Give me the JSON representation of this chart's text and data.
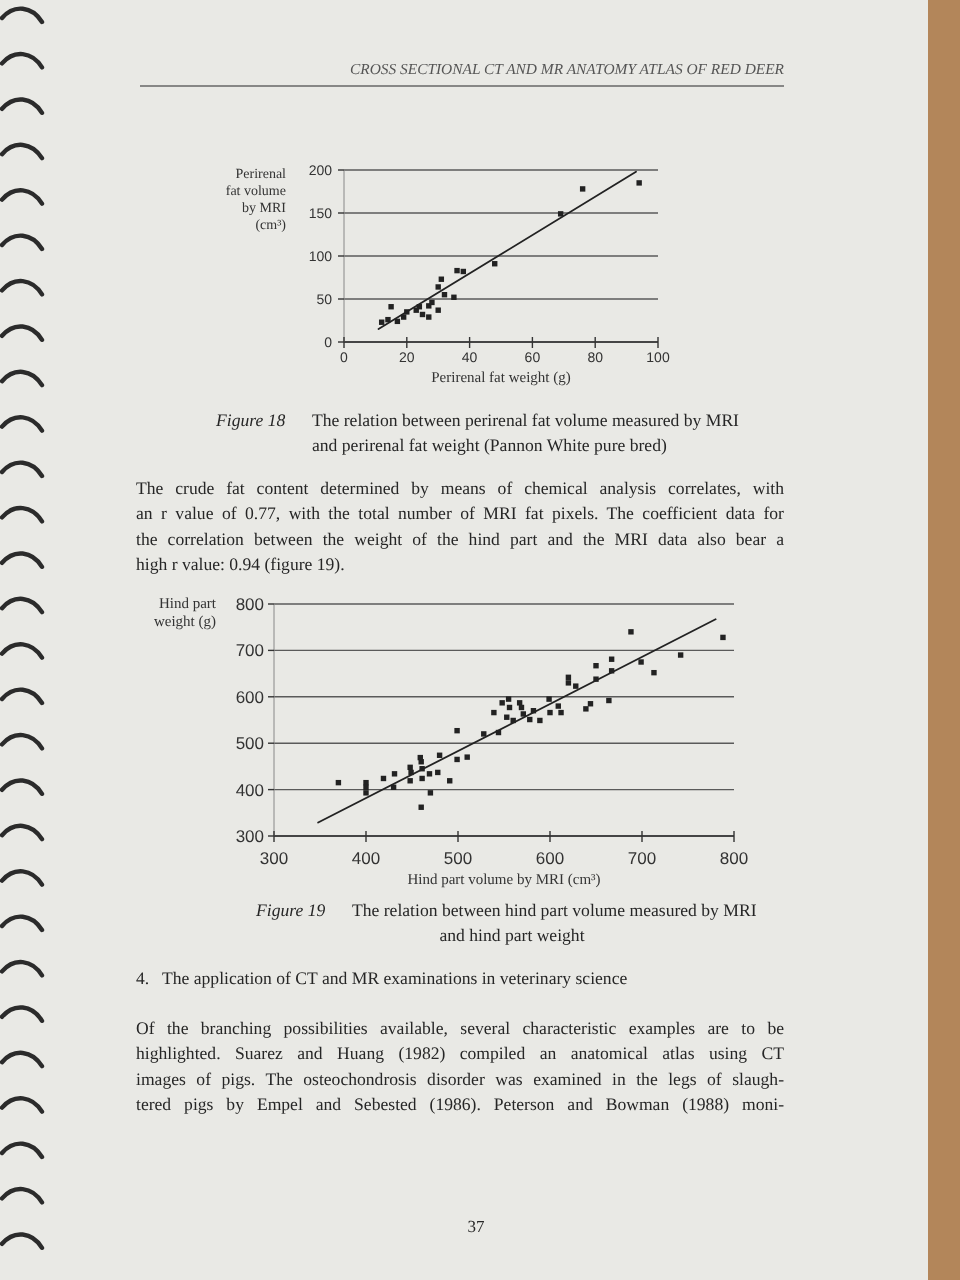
{
  "chart_data": [
    {
      "type": "scatter",
      "xlabel": "Perirenal fat weight (g)",
      "ylabel": "Perirenal\nfat volume\nby MRI\n(cm³)",
      "xlim": [
        0,
        100
      ],
      "ylim": [
        0,
        200
      ],
      "xticks": [
        0,
        20,
        40,
        60,
        80,
        100
      ],
      "yticks": [
        0,
        50,
        100,
        150,
        200
      ],
      "grid": "y",
      "series": [
        {
          "color": "#222222",
          "marker": "square",
          "x": [
            12,
            14,
            15,
            17,
            19,
            20,
            23,
            24,
            25,
            27,
            27,
            28,
            30,
            30,
            31,
            32,
            35,
            36,
            38,
            48,
            69,
            76,
            94
          ],
          "values": [
            23,
            26,
            41,
            24,
            29,
            35,
            37,
            41,
            32,
            29,
            42,
            46,
            37,
            64,
            73,
            55,
            52,
            83,
            82,
            91,
            149,
            178,
            185
          ]
        },
        {
          "type": "line",
          "color": "#222222",
          "x": [
            11,
            93
          ],
          "values": [
            15,
            198
          ]
        }
      ],
      "annotations": [
        "CROSS SECTIONAL CT AND MR ANATOMY ATLAS OF RED DEER",
        "Figure 18  The relation between perirenal fat volume measured by MRI\nand perirenal fat weight (Pannon White pure bred)",
        "The crude fat content determined by means of chemical analysis correlates, with\nan r value of 0.77, with the total number of MRI fat pixels. The coefficient data for\nthe correlation between the weight of the hind part and the MRI data also bear a\nhigh r value: 0.94 (figure 19)."
      ]
    },
    {
      "type": "scatter",
      "xlabel": "Hind part volume by MRI (cm³)",
      "ylabel": "Hind part\nweight (g)",
      "xlim": [
        300,
        800
      ],
      "ylim": [
        300,
        800
      ],
      "xticks": [
        300,
        400,
        500,
        600,
        700,
        800
      ],
      "yticks": [
        300,
        400,
        500,
        600,
        700,
        800
      ],
      "grid": "y",
      "series": [
        {
          "color": "#222222",
          "marker": "square",
          "x": [
            370,
            400,
            400,
            400,
            419,
            430,
            431,
            448,
            449,
            448,
            459,
            460,
            461,
            461,
            460,
            469,
            470,
            478,
            480,
            491,
            499,
            499,
            510,
            528,
            539,
            544,
            548,
            555,
            556,
            553,
            560,
            567,
            569,
            571,
            578,
            582,
            589,
            599,
            600,
            609,
            612,
            620,
            620,
            628,
            639,
            644,
            650,
            650,
            664,
            667,
            667,
            688,
            699,
            713,
            742,
            788
          ],
          "values": [
            415,
            415,
            405,
            393,
            424,
            405,
            434,
            448,
            437,
            419,
            469,
            460,
            445,
            424,
            362,
            434,
            393,
            437,
            474,
            419,
            527,
            465,
            470,
            520,
            566,
            523,
            587,
            595,
            577,
            556,
            549,
            587,
            577,
            563,
            551,
            570,
            549,
            595,
            566,
            580,
            566,
            642,
            630,
            623,
            574,
            585,
            638,
            667,
            592,
            681,
            656,
            740,
            675,
            652,
            690,
            728
          ]
        },
        {
          "type": "line",
          "color": "#222222",
          "x": [
            348,
            780
          ],
          "values": [
            329,
            767
          ]
        }
      ],
      "annotations": [
        "Figure 19  The relation between hind part volume measured by MRI\nand hind part weight",
        "4.  The application of CT and MR examinations in veterinary science",
        "Of the branching possibilities available, several characteristic examples are to be\nhighlighted. Suarez and Huang (1982) compiled an anatomical atlas using CT\nimages of pigs. The osteochondrosis disorder was examined in the legs of slaugh-\ntered pigs by Empel and Sebested (1986). Peterson and Bowman (1988) moni-",
        "37"
      ]
    }
  ]
}
